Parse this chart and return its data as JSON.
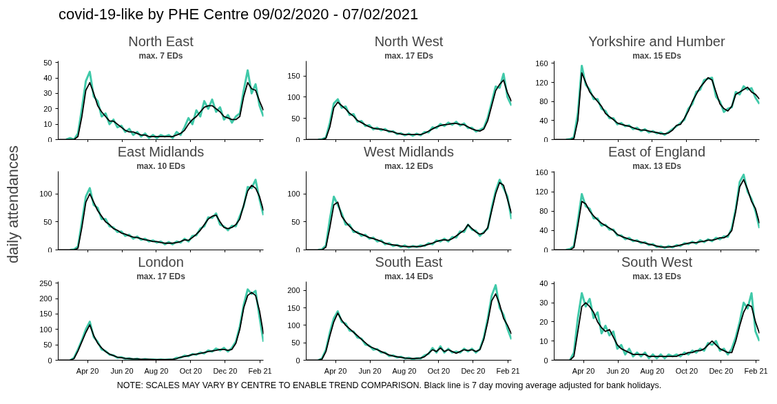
{
  "chart_data": [
    {
      "type": "other",
      "title": "covid-19-like by PHE Centre 09/02/2020 - 07/02/2021",
      "ylabel": "daily attendances",
      "annotations": [
        "NOTE: SCALES MAY VARY BY CENTRE TO ENABLE TREND COMPARISON. Black line is 7 day moving average adjusted for bank holidays."
      ]
    },
    {
      "type": "line",
      "title": "North East",
      "subtitle": "max. 7 EDs",
      "xlim": [
        "2020-02-09",
        "2021-02-07"
      ],
      "xticks": [
        {
          "value": "2020-04-01",
          "label": null
        },
        {
          "value": "2020-06-01",
          "label": null
        },
        {
          "value": "2020-08-01",
          "label": null
        },
        {
          "value": "2020-10-01",
          "label": null
        },
        {
          "value": "2020-12-01",
          "label": null
        },
        {
          "value": "2021-02-01",
          "label": null
        }
      ],
      "x": [
        "2020-02-09",
        "2020-02-16",
        "2020-02-23",
        "2020-03-01",
        "2020-03-08",
        "2020-03-15",
        "2020-03-22",
        "2020-03-29",
        "2020-04-05",
        "2020-04-12",
        "2020-04-19",
        "2020-04-26",
        "2020-05-03",
        "2020-05-10",
        "2020-05-17",
        "2020-05-24",
        "2020-05-31",
        "2020-06-07",
        "2020-06-14",
        "2020-06-21",
        "2020-06-28",
        "2020-07-05",
        "2020-07-12",
        "2020-07-19",
        "2020-07-26",
        "2020-08-02",
        "2020-08-09",
        "2020-08-16",
        "2020-08-23",
        "2020-08-30",
        "2020-09-06",
        "2020-09-13",
        "2020-09-20",
        "2020-09-27",
        "2020-10-04",
        "2020-10-11",
        "2020-10-18",
        "2020-10-25",
        "2020-11-01",
        "2020-11-08",
        "2020-11-15",
        "2020-11-22",
        "2020-11-29",
        "2020-12-06",
        "2020-12-13",
        "2020-12-20",
        "2020-12-27",
        "2021-01-03",
        "2021-01-10",
        "2021-01-17",
        "2021-01-24",
        "2021-01-31",
        "2021-02-07"
      ],
      "ylim": [
        0,
        51
      ],
      "yticks": [
        0,
        10,
        20,
        30,
        40,
        50
      ],
      "tick_labels": "y",
      "series": [
        {
          "color": "#40c9a9",
          "values": [
            null,
            null,
            0,
            1,
            0,
            4,
            20,
            38,
            44,
            28,
            25,
            15,
            17,
            10,
            13,
            8,
            9,
            5,
            7,
            3,
            5,
            2,
            4,
            1,
            3,
            1,
            3,
            2,
            3,
            1,
            5,
            3,
            8,
            14,
            10,
            19,
            15,
            25,
            20,
            26,
            18,
            21,
            13,
            16,
            11,
            15,
            17,
            32,
            45,
            30,
            36,
            22,
            15
          ]
        },
        {
          "color": "#000000",
          "values": [
            0,
            0,
            0,
            0,
            0,
            2,
            15,
            32,
            37,
            30,
            22,
            18,
            15,
            12,
            12,
            10,
            8,
            6,
            5,
            5,
            4,
            3,
            3,
            2,
            2,
            2,
            2,
            2,
            2,
            2,
            3,
            4,
            6,
            10,
            13,
            15,
            18,
            21,
            22,
            22,
            20,
            18,
            15,
            14,
            13,
            13,
            15,
            28,
            37,
            33,
            32,
            25,
            19
          ]
        }
      ]
    },
    {
      "type": "line",
      "title": "North West",
      "subtitle": "max. 17 EDs",
      "xlim": [
        "2020-02-09",
        "2021-02-07"
      ],
      "xticks": [
        {
          "value": "2020-04-01",
          "label": null
        },
        {
          "value": "2020-06-01",
          "label": null
        },
        {
          "value": "2020-08-01",
          "label": null
        },
        {
          "value": "2020-10-01",
          "label": null
        },
        {
          "value": "2020-12-01",
          "label": null
        },
        {
          "value": "2021-02-01",
          "label": null
        }
      ],
      "x": [
        "2020-02-09",
        "2020-02-16",
        "2020-02-23",
        "2020-03-01",
        "2020-03-08",
        "2020-03-15",
        "2020-03-22",
        "2020-03-29",
        "2020-04-05",
        "2020-04-12",
        "2020-04-19",
        "2020-04-26",
        "2020-05-03",
        "2020-05-10",
        "2020-05-17",
        "2020-05-24",
        "2020-05-31",
        "2020-06-07",
        "2020-06-14",
        "2020-06-21",
        "2020-06-28",
        "2020-07-05",
        "2020-07-12",
        "2020-07-19",
        "2020-07-26",
        "2020-08-02",
        "2020-08-09",
        "2020-08-16",
        "2020-08-23",
        "2020-08-30",
        "2020-09-06",
        "2020-09-13",
        "2020-09-20",
        "2020-09-27",
        "2020-10-04",
        "2020-10-11",
        "2020-10-18",
        "2020-10-25",
        "2020-11-01",
        "2020-11-08",
        "2020-11-15",
        "2020-11-22",
        "2020-11-29",
        "2020-12-06",
        "2020-12-13",
        "2020-12-20",
        "2020-12-27",
        "2021-01-03",
        "2021-01-10",
        "2021-01-17",
        "2021-01-24",
        "2021-01-31",
        "2021-02-07"
      ],
      "ylim": [
        0,
        185
      ],
      "yticks": [
        0,
        50,
        100,
        150
      ],
      "tick_labels": "y",
      "series": [
        {
          "color": "#40c9a9",
          "values": [
            null,
            null,
            null,
            0,
            1,
            5,
            40,
            85,
            95,
            75,
            78,
            58,
            60,
            42,
            44,
            32,
            34,
            24,
            28,
            22,
            25,
            18,
            20,
            13,
            15,
            10,
            14,
            9,
            14,
            10,
            18,
            17,
            29,
            27,
            37,
            32,
            40,
            35,
            42,
            33,
            38,
            27,
            28,
            19,
            23,
            28,
            52,
            88,
            125,
            122,
            155,
            100,
            80
          ]
        },
        {
          "color": "#000000",
          "values": [
            0,
            0,
            0,
            0,
            0,
            3,
            30,
            75,
            88,
            80,
            72,
            62,
            55,
            45,
            40,
            35,
            30,
            27,
            25,
            25,
            22,
            20,
            18,
            15,
            13,
            12,
            12,
            12,
            12,
            12,
            15,
            20,
            25,
            30,
            33,
            35,
            36,
            38,
            38,
            36,
            35,
            30,
            25,
            22,
            20,
            25,
            45,
            80,
            115,
            130,
            140,
            110,
            90
          ]
        }
      ]
    },
    {
      "type": "line",
      "title": "Yorkshire and Humber",
      "subtitle": "max. 15 EDs",
      "xlim": [
        "2020-02-09",
        "2021-02-07"
      ],
      "xticks": [
        {
          "value": "2020-04-01",
          "label": null
        },
        {
          "value": "2020-06-01",
          "label": null
        },
        {
          "value": "2020-08-01",
          "label": null
        },
        {
          "value": "2020-10-01",
          "label": null
        },
        {
          "value": "2020-12-01",
          "label": null
        },
        {
          "value": "2021-02-01",
          "label": null
        }
      ],
      "x": [
        "2020-02-09",
        "2020-02-16",
        "2020-02-23",
        "2020-03-01",
        "2020-03-08",
        "2020-03-15",
        "2020-03-22",
        "2020-03-29",
        "2020-04-05",
        "2020-04-12",
        "2020-04-19",
        "2020-04-26",
        "2020-05-03",
        "2020-05-10",
        "2020-05-17",
        "2020-05-24",
        "2020-05-31",
        "2020-06-07",
        "2020-06-14",
        "2020-06-21",
        "2020-06-28",
        "2020-07-05",
        "2020-07-12",
        "2020-07-19",
        "2020-07-26",
        "2020-08-02",
        "2020-08-09",
        "2020-08-16",
        "2020-08-23",
        "2020-08-30",
        "2020-09-06",
        "2020-09-13",
        "2020-09-20",
        "2020-09-27",
        "2020-10-04",
        "2020-10-11",
        "2020-10-18",
        "2020-10-25",
        "2020-11-01",
        "2020-11-08",
        "2020-11-15",
        "2020-11-22",
        "2020-11-29",
        "2020-12-06",
        "2020-12-13",
        "2020-12-20",
        "2020-12-27",
        "2021-01-03",
        "2021-01-10",
        "2021-01-17",
        "2021-01-24",
        "2021-01-31",
        "2021-02-07"
      ],
      "ylim": [
        0,
        165
      ],
      "yticks": [
        0,
        40,
        80,
        120,
        160
      ],
      "tick_labels": "y",
      "series": [
        {
          "color": "#40c9a9",
          "values": [
            null,
            null,
            null,
            0,
            1,
            5,
            55,
            155,
            115,
            105,
            85,
            85,
            65,
            60,
            45,
            45,
            32,
            35,
            28,
            30,
            22,
            25,
            18,
            22,
            15,
            18,
            13,
            15,
            10,
            16,
            22,
            28,
            35,
            42,
            65,
            75,
            100,
            105,
            125,
            128,
            130,
            90,
            80,
            58,
            65,
            68,
            100,
            95,
            112,
            105,
            108,
            88,
            75
          ]
        },
        {
          "color": "#000000",
          "values": [
            0,
            0,
            0,
            0,
            0,
            2,
            40,
            140,
            120,
            100,
            90,
            80,
            70,
            55,
            48,
            42,
            35,
            32,
            30,
            28,
            25,
            22,
            20,
            20,
            18,
            16,
            15,
            12,
            12,
            14,
            20,
            30,
            32,
            45,
            60,
            80,
            95,
            110,
            120,
            130,
            125,
            100,
            75,
            65,
            60,
            70,
            95,
            100,
            105,
            110,
            100,
            95,
            85
          ]
        }
      ]
    },
    {
      "type": "line",
      "title": "East Midlands",
      "subtitle": "max. 10 EDs",
      "xlim": [
        "2020-02-09",
        "2021-02-07"
      ],
      "xticks": [
        {
          "value": "2020-04-01",
          "label": null
        },
        {
          "value": "2020-06-01",
          "label": null
        },
        {
          "value": "2020-08-01",
          "label": null
        },
        {
          "value": "2020-10-01",
          "label": null
        },
        {
          "value": "2020-12-01",
          "label": null
        },
        {
          "value": "2021-02-01",
          "label": null
        }
      ],
      "x": [
        "2020-02-09",
        "2020-02-16",
        "2020-02-23",
        "2020-03-01",
        "2020-03-08",
        "2020-03-15",
        "2020-03-22",
        "2020-03-29",
        "2020-04-05",
        "2020-04-12",
        "2020-04-19",
        "2020-04-26",
        "2020-05-03",
        "2020-05-10",
        "2020-05-17",
        "2020-05-24",
        "2020-05-31",
        "2020-06-07",
        "2020-06-14",
        "2020-06-21",
        "2020-06-28",
        "2020-07-05",
        "2020-07-12",
        "2020-07-19",
        "2020-07-26",
        "2020-08-02",
        "2020-08-09",
        "2020-08-16",
        "2020-08-23",
        "2020-08-30",
        "2020-09-06",
        "2020-09-13",
        "2020-09-20",
        "2020-09-27",
        "2020-10-04",
        "2020-10-11",
        "2020-10-18",
        "2020-10-25",
        "2020-11-01",
        "2020-11-08",
        "2020-11-15",
        "2020-11-22",
        "2020-11-29",
        "2020-12-06",
        "2020-12-13",
        "2020-12-20",
        "2020-12-27",
        "2021-01-03",
        "2021-01-10",
        "2021-01-17",
        "2021-01-24",
        "2021-01-31",
        "2021-02-07"
      ],
      "ylim": [
        0,
        140
      ],
      "yticks": [
        0,
        50,
        100
      ],
      "tick_labels": "y",
      "series": [
        {
          "color": "#40c9a9",
          "values": [
            null,
            null,
            null,
            0,
            1,
            6,
            50,
            95,
            110,
            80,
            75,
            55,
            55,
            42,
            40,
            32,
            33,
            25,
            27,
            20,
            24,
            18,
            20,
            15,
            17,
            13,
            15,
            10,
            14,
            10,
            15,
            13,
            20,
            15,
            25,
            26,
            38,
            42,
            58,
            57,
            65,
            45,
            42,
            35,
            43,
            42,
            60,
            78,
            112,
            110,
            125,
            90,
            62
          ]
        },
        {
          "color": "#000000",
          "values": [
            0,
            0,
            0,
            0,
            0,
            3,
            40,
            85,
            100,
            85,
            70,
            60,
            50,
            45,
            38,
            35,
            30,
            28,
            25,
            23,
            22,
            20,
            18,
            17,
            15,
            15,
            13,
            12,
            12,
            12,
            13,
            15,
            18,
            17,
            22,
            28,
            35,
            45,
            55,
            60,
            62,
            50,
            40,
            38,
            40,
            45,
            55,
            80,
            105,
            115,
            110,
            95,
            70
          ]
        }
      ]
    },
    {
      "type": "line",
      "title": "West Midlands",
      "subtitle": "max. 12 EDs",
      "xlim": [
        "2020-02-09",
        "2021-02-07"
      ],
      "xticks": [
        {
          "value": "2020-04-01",
          "label": null
        },
        {
          "value": "2020-06-01",
          "label": null
        },
        {
          "value": "2020-08-01",
          "label": null
        },
        {
          "value": "2020-10-01",
          "label": null
        },
        {
          "value": "2020-12-01",
          "label": null
        },
        {
          "value": "2021-02-01",
          "label": null
        }
      ],
      "x": [
        "2020-02-09",
        "2020-02-16",
        "2020-02-23",
        "2020-03-01",
        "2020-03-08",
        "2020-03-15",
        "2020-03-22",
        "2020-03-29",
        "2020-04-05",
        "2020-04-12",
        "2020-04-19",
        "2020-04-26",
        "2020-05-03",
        "2020-05-10",
        "2020-05-17",
        "2020-05-24",
        "2020-05-31",
        "2020-06-07",
        "2020-06-14",
        "2020-06-21",
        "2020-06-28",
        "2020-07-05",
        "2020-07-12",
        "2020-07-19",
        "2020-07-26",
        "2020-08-02",
        "2020-08-09",
        "2020-08-16",
        "2020-08-23",
        "2020-08-30",
        "2020-09-06",
        "2020-09-13",
        "2020-09-20",
        "2020-09-27",
        "2020-10-04",
        "2020-10-11",
        "2020-10-18",
        "2020-10-25",
        "2020-11-01",
        "2020-11-08",
        "2020-11-15",
        "2020-11-22",
        "2020-11-29",
        "2020-12-06",
        "2020-12-13",
        "2020-12-20",
        "2020-12-27",
        "2021-01-03",
        "2021-01-10",
        "2021-01-17",
        "2021-01-24",
        "2021-01-31",
        "2021-02-07"
      ],
      "ylim": [
        0,
        140
      ],
      "yticks": [
        0,
        50,
        100
      ],
      "tick_labels": "y",
      "series": [
        {
          "color": "#40c9a9",
          "values": [
            null,
            null,
            null,
            0,
            1,
            8,
            55,
            95,
            80,
            65,
            45,
            45,
            32,
            32,
            25,
            27,
            20,
            22,
            15,
            17,
            10,
            12,
            7,
            9,
            5,
            8,
            4,
            7,
            5,
            8,
            7,
            12,
            10,
            17,
            15,
            20,
            15,
            23,
            22,
            33,
            32,
            45,
            36,
            34,
            25,
            32,
            38,
            75,
            105,
            125,
            110,
            95,
            55
          ]
        },
        {
          "color": "#000000",
          "values": [
            0,
            0,
            0,
            0,
            0,
            5,
            40,
            80,
            85,
            60,
            50,
            42,
            35,
            30,
            28,
            25,
            22,
            20,
            18,
            15,
            12,
            10,
            9,
            8,
            7,
            6,
            6,
            6,
            6,
            6,
            8,
            10,
            12,
            15,
            17,
            18,
            17,
            20,
            25,
            30,
            35,
            45,
            38,
            32,
            28,
            30,
            40,
            70,
            100,
            120,
            115,
            90,
            65
          ]
        }
      ]
    },
    {
      "type": "line",
      "title": "East of England",
      "subtitle": "max. 13 EDs",
      "xlim": [
        "2020-02-09",
        "2021-02-07"
      ],
      "xticks": [
        {
          "value": "2020-04-01",
          "label": null
        },
        {
          "value": "2020-06-01",
          "label": null
        },
        {
          "value": "2020-08-01",
          "label": null
        },
        {
          "value": "2020-10-01",
          "label": null
        },
        {
          "value": "2020-12-01",
          "label": null
        },
        {
          "value": "2021-02-01",
          "label": null
        }
      ],
      "x": [
        "2020-02-09",
        "2020-02-16",
        "2020-02-23",
        "2020-03-01",
        "2020-03-08",
        "2020-03-15",
        "2020-03-22",
        "2020-03-29",
        "2020-04-05",
        "2020-04-12",
        "2020-04-19",
        "2020-04-26",
        "2020-05-03",
        "2020-05-10",
        "2020-05-17",
        "2020-05-24",
        "2020-05-31",
        "2020-06-07",
        "2020-06-14",
        "2020-06-21",
        "2020-06-28",
        "2020-07-05",
        "2020-07-12",
        "2020-07-19",
        "2020-07-26",
        "2020-08-02",
        "2020-08-09",
        "2020-08-16",
        "2020-08-23",
        "2020-08-30",
        "2020-09-06",
        "2020-09-13",
        "2020-09-20",
        "2020-09-27",
        "2020-10-04",
        "2020-10-11",
        "2020-10-18",
        "2020-10-25",
        "2020-11-01",
        "2020-11-08",
        "2020-11-15",
        "2020-11-22",
        "2020-11-29",
        "2020-12-06",
        "2020-12-13",
        "2020-12-20",
        "2020-12-27",
        "2021-01-03",
        "2021-01-10",
        "2021-01-17",
        "2021-01-24",
        "2021-01-31",
        "2021-02-07"
      ],
      "ylim": [
        0,
        162
      ],
      "yticks": [
        0,
        40,
        80,
        120,
        160
      ],
      "tick_labels": "y",
      "series": [
        {
          "color": "#40c9a9",
          "values": [
            null,
            null,
            null,
            0,
            2,
            8,
            60,
            115,
            90,
            85,
            65,
            65,
            50,
            52,
            42,
            42,
            30,
            30,
            22,
            25,
            18,
            20,
            14,
            16,
            10,
            12,
            6,
            8,
            4,
            8,
            5,
            10,
            8,
            14,
            12,
            17,
            13,
            20,
            16,
            22,
            18,
            25,
            22,
            28,
            27,
            45,
            85,
            140,
            155,
            120,
            105,
            80,
            45
          ]
        },
        {
          "color": "#000000",
          "values": [
            0,
            0,
            0,
            0,
            0,
            5,
            50,
            100,
            95,
            80,
            70,
            62,
            55,
            50,
            45,
            40,
            32,
            28,
            25,
            22,
            20,
            18,
            16,
            14,
            12,
            10,
            8,
            6,
            6,
            6,
            7,
            8,
            10,
            12,
            14,
            15,
            15,
            17,
            18,
            20,
            20,
            22,
            25,
            25,
            30,
            40,
            80,
            130,
            145,
            125,
            100,
            85,
            55
          ]
        }
      ]
    },
    {
      "type": "line",
      "title": "London",
      "subtitle": "max. 17 EDs",
      "x": [
        "2020-02-09",
        "2020-02-16",
        "2020-02-23",
        "2020-03-01",
        "2020-03-08",
        "2020-03-15",
        "2020-03-22",
        "2020-03-29",
        "2020-04-05",
        "2020-04-12",
        "2020-04-19",
        "2020-04-26",
        "2020-05-03",
        "2020-05-10",
        "2020-05-17",
        "2020-05-24",
        "2020-05-31",
        "2020-06-07",
        "2020-06-14",
        "2020-06-21",
        "2020-06-28",
        "2020-07-05",
        "2020-07-12",
        "2020-07-19",
        "2020-07-26",
        "2020-08-02",
        "2020-08-09",
        "2020-08-16",
        "2020-08-23",
        "2020-08-30",
        "2020-09-06",
        "2020-09-13",
        "2020-09-20",
        "2020-09-27",
        "2020-10-04",
        "2020-10-11",
        "2020-10-18",
        "2020-10-25",
        "2020-11-01",
        "2020-11-08",
        "2020-11-15",
        "2020-11-22",
        "2020-11-29",
        "2020-12-06",
        "2020-12-13",
        "2020-12-20",
        "2020-12-27",
        "2021-01-03",
        "2021-01-10",
        "2021-01-17",
        "2021-01-24",
        "2021-01-31",
        "2021-02-07"
      ],
      "xlim": [
        "2020-02-09",
        "2021-02-07"
      ],
      "xticks": [
        {
          "value": "2020-04-01",
          "label": "Apr 20"
        },
        {
          "value": "2020-06-01",
          "label": "Jun 20"
        },
        {
          "value": "2020-08-01",
          "label": "Aug 20"
        },
        {
          "value": "2020-10-01",
          "label": "Oct 20"
        },
        {
          "value": "2020-12-01",
          "label": "Dec 20"
        },
        {
          "value": "2021-02-01",
          "label": "Feb 21"
        }
      ],
      "ylim": [
        0,
        255
      ],
      "yticks": [
        0,
        50,
        100,
        150,
        200,
        250
      ],
      "series": [
        {
          "color": "#40c9a9",
          "values": [
            null,
            null,
            null,
            0,
            8,
            35,
            65,
            100,
            125,
            75,
            60,
            35,
            30,
            18,
            16,
            8,
            10,
            5,
            6,
            3,
            5,
            2,
            4,
            2,
            3,
            1,
            3,
            1,
            3,
            2,
            8,
            8,
            15,
            13,
            20,
            18,
            25,
            22,
            32,
            28,
            38,
            32,
            40,
            28,
            40,
            60,
            110,
            180,
            230,
            215,
            225,
            140,
            60
          ]
        },
        {
          "color": "#000000",
          "values": [
            0,
            0,
            0,
            0,
            5,
            30,
            60,
            90,
            115,
            80,
            55,
            40,
            28,
            20,
            15,
            10,
            8,
            6,
            5,
            4,
            4,
            3,
            3,
            3,
            2,
            2,
            2,
            2,
            2,
            3,
            5,
            10,
            12,
            15,
            18,
            20,
            22,
            25,
            28,
            30,
            32,
            35,
            35,
            32,
            35,
            55,
            100,
            170,
            210,
            220,
            210,
            160,
            85
          ]
        }
      ]
    },
    {
      "type": "line",
      "title": "South East",
      "subtitle": "max. 14 EDs",
      "x": [
        "2020-02-09",
        "2020-02-16",
        "2020-02-23",
        "2020-03-01",
        "2020-03-08",
        "2020-03-15",
        "2020-03-22",
        "2020-03-29",
        "2020-04-05",
        "2020-04-12",
        "2020-04-19",
        "2020-04-26",
        "2020-05-03",
        "2020-05-10",
        "2020-05-17",
        "2020-05-24",
        "2020-05-31",
        "2020-06-07",
        "2020-06-14",
        "2020-06-21",
        "2020-06-28",
        "2020-07-05",
        "2020-07-12",
        "2020-07-19",
        "2020-07-26",
        "2020-08-02",
        "2020-08-09",
        "2020-08-16",
        "2020-08-23",
        "2020-08-30",
        "2020-09-06",
        "2020-09-13",
        "2020-09-20",
        "2020-09-27",
        "2020-10-04",
        "2020-10-11",
        "2020-10-18",
        "2020-10-25",
        "2020-11-01",
        "2020-11-08",
        "2020-11-15",
        "2020-11-22",
        "2020-11-29",
        "2020-12-06",
        "2020-12-13",
        "2020-12-20",
        "2020-12-27",
        "2021-01-03",
        "2021-01-10",
        "2021-01-17",
        "2021-01-24",
        "2021-01-31",
        "2021-02-07"
      ],
      "xlim": [
        "2020-02-09",
        "2021-02-07"
      ],
      "xticks": [
        {
          "value": "2020-04-01",
          "label": "Apr 20"
        },
        {
          "value": "2020-06-01",
          "label": "Jun 20"
        },
        {
          "value": "2020-08-01",
          "label": "Aug 20"
        },
        {
          "value": "2020-10-01",
          "label": "Oct 20"
        },
        {
          "value": "2020-12-01",
          "label": "Dec 20"
        },
        {
          "value": "2021-02-01",
          "label": "Feb 21"
        }
      ],
      "ylim": [
        0,
        225
      ],
      "yticks": [
        0,
        50,
        100,
        150,
        200
      ],
      "series": [
        {
          "color": "#40c9a9",
          "values": [
            null,
            null,
            null,
            0,
            5,
            30,
            80,
            120,
            140,
            110,
            105,
            85,
            82,
            65,
            62,
            45,
            42,
            30,
            32,
            22,
            22,
            12,
            14,
            8,
            10,
            5,
            7,
            3,
            6,
            5,
            14,
            18,
            35,
            22,
            40,
            22,
            33,
            22,
            25,
            22,
            33,
            25,
            33,
            22,
            32,
            65,
            120,
            185,
            215,
            150,
            130,
            90,
            60
          ]
        },
        {
          "color": "#000000",
          "values": [
            0,
            0,
            0,
            0,
            3,
            25,
            70,
            110,
            135,
            115,
            100,
            90,
            80,
            70,
            60,
            50,
            40,
            35,
            30,
            25,
            20,
            15,
            12,
            10,
            8,
            6,
            5,
            5,
            5,
            6,
            10,
            20,
            30,
            25,
            35,
            25,
            30,
            25,
            20,
            25,
            30,
            28,
            30,
            25,
            30,
            60,
            110,
            170,
            190,
            160,
            120,
            100,
            75
          ]
        }
      ]
    },
    {
      "type": "line",
      "title": "South West",
      "subtitle": "max. 13 EDs",
      "x": [
        "2020-02-09",
        "2020-02-16",
        "2020-02-23",
        "2020-03-01",
        "2020-03-08",
        "2020-03-15",
        "2020-03-22",
        "2020-03-29",
        "2020-04-05",
        "2020-04-12",
        "2020-04-19",
        "2020-04-26",
        "2020-05-03",
        "2020-05-10",
        "2020-05-17",
        "2020-05-24",
        "2020-05-31",
        "2020-06-07",
        "2020-06-14",
        "2020-06-21",
        "2020-06-28",
        "2020-07-05",
        "2020-07-12",
        "2020-07-19",
        "2020-07-26",
        "2020-08-02",
        "2020-08-09",
        "2020-08-16",
        "2020-08-23",
        "2020-08-30",
        "2020-09-06",
        "2020-09-13",
        "2020-09-20",
        "2020-09-27",
        "2020-10-04",
        "2020-10-11",
        "2020-10-18",
        "2020-10-25",
        "2020-11-01",
        "2020-11-08",
        "2020-11-15",
        "2020-11-22",
        "2020-11-29",
        "2020-12-06",
        "2020-12-13",
        "2020-12-20",
        "2020-12-27",
        "2021-01-03",
        "2021-01-10",
        "2021-01-17",
        "2021-01-24",
        "2021-01-31",
        "2021-02-07"
      ],
      "xlim": [
        "2020-02-09",
        "2021-02-07"
      ],
      "xticks": [
        {
          "value": "2020-04-01",
          "label": "Apr 20"
        },
        {
          "value": "2020-06-01",
          "label": "Jun 20"
        },
        {
          "value": "2020-08-01",
          "label": "Aug 20"
        },
        {
          "value": "2020-10-01",
          "label": "Oct 20"
        },
        {
          "value": "2020-12-01",
          "label": "Dec 20"
        },
        {
          "value": "2021-02-01",
          "label": "Feb 21"
        }
      ],
      "ylim": [
        0,
        41
      ],
      "yticks": [
        0,
        10,
        20,
        30,
        40
      ],
      "series": [
        {
          "color": "#40c9a9",
          "values": [
            null,
            null,
            null,
            null,
            0,
            4,
            22,
            35,
            28,
            32,
            22,
            25,
            14,
            18,
            13,
            15,
            6,
            8,
            3,
            6,
            2,
            4,
            2,
            4,
            1,
            3,
            1,
            3,
            1,
            3,
            2,
            3,
            2,
            4,
            3,
            5,
            4,
            6,
            5,
            9,
            8,
            10,
            5,
            6,
            3,
            6,
            12,
            20,
            30,
            27,
            35,
            15,
            10
          ]
        },
        {
          "color": "#000000",
          "values": [
            0,
            0,
            0,
            0,
            0,
            2,
            15,
            28,
            30,
            28,
            25,
            20,
            17,
            15,
            16,
            12,
            8,
            6,
            5,
            4,
            3,
            3,
            3,
            3,
            2,
            2,
            2,
            2,
            2,
            2,
            2,
            2,
            3,
            3,
            4,
            4,
            5,
            5,
            6,
            8,
            10,
            8,
            6,
            5,
            4,
            4,
            10,
            18,
            25,
            29,
            28,
            20,
            14
          ]
        }
      ]
    }
  ]
}
